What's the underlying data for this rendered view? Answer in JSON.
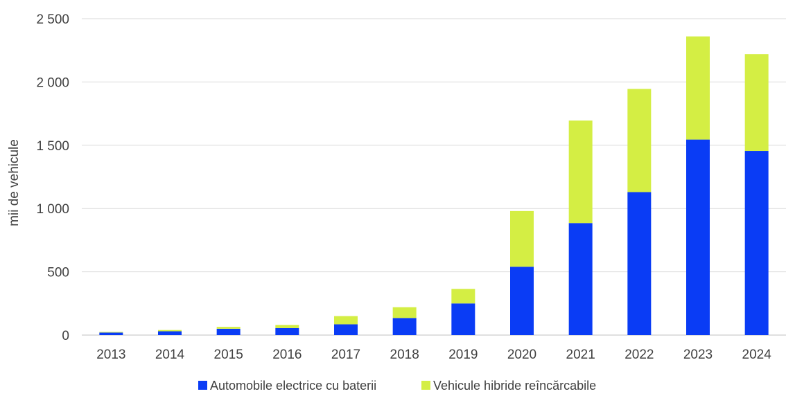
{
  "chart_data": {
    "type": "bar",
    "stacked": true,
    "categories": [
      "2013",
      "2014",
      "2015",
      "2016",
      "2017",
      "2018",
      "2019",
      "2020",
      "2021",
      "2022",
      "2023",
      "2024"
    ],
    "series": [
      {
        "name": "Automobile electrice cu baterii",
        "color": "#0a3cf5",
        "values": [
          20,
          30,
          50,
          55,
          85,
          135,
          250,
          540,
          885,
          1130,
          1545,
          1455
        ]
      },
      {
        "name": "Vehicule hibride reîncărcabile",
        "color": "#d4ee44",
        "values": [
          5,
          10,
          15,
          25,
          65,
          85,
          115,
          440,
          810,
          815,
          815,
          765
        ]
      }
    ],
    "title": "",
    "xlabel": "",
    "ylabel": "mii de vehicule",
    "ylim": [
      0,
      2500
    ],
    "yticks": [
      0,
      500,
      1000,
      1500,
      2000,
      2500
    ],
    "ytick_labels": [
      "0",
      "500",
      "1 000",
      "1 500",
      "2 000",
      "2 500"
    ],
    "grid": true,
    "legend_position": "bottom"
  }
}
